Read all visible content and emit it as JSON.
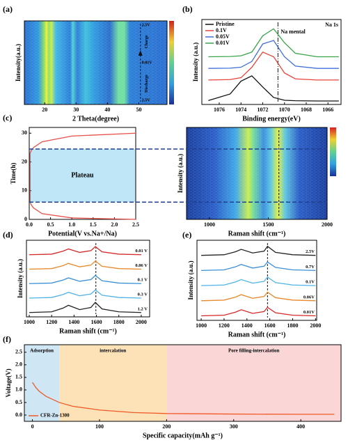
{
  "chart_data": [
    {
      "panel": "(a)",
      "type": "heatmap",
      "xlabel": "2 Theta(degree)",
      "ylabel": "Intensity(a.u.)",
      "xlim": [
        13.5,
        59
      ],
      "xticks": [
        20,
        30,
        40,
        50
      ],
      "ref_x": 50.5,
      "annotations": [
        "2.5V",
        "0.01V",
        "2.5V",
        "Charge",
        "Discharge"
      ]
    },
    {
      "panel": "(b)",
      "type": "line",
      "xlabel": "Binding energy(eV)",
      "ylabel": "Intensity (a.u.)",
      "x": [
        1077,
        1075,
        1074,
        1073,
        1072,
        1071,
        1070,
        1069,
        1067,
        1065
      ],
      "series": [
        {
          "name": "Pristine",
          "color": "#111111",
          "values": [
            0.02,
            0.3,
            0.85,
            1.08,
            0.6,
            0.15,
            0.03,
            0.01,
            0,
            0
          ]
        },
        {
          "name": "0.1V",
          "color": "#e8443a",
          "values": [
            0.9,
            0.92,
            1.0,
            1.45,
            2.1,
            1.9,
            1.2,
            0.95,
            0.9,
            0.9
          ]
        },
        {
          "name": "0.05V",
          "color": "#3f6fd8",
          "values": [
            1.4,
            1.41,
            1.45,
            1.7,
            2.45,
            2.6,
            1.9,
            1.5,
            1.4,
            1.4
          ]
        },
        {
          "name": "0.01V",
          "color": "#3aa54a",
          "values": [
            1.9,
            1.91,
            1.94,
            2.1,
            2.8,
            3.1,
            2.5,
            2.05,
            1.9,
            1.9
          ]
        }
      ],
      "xlim": [
        1077.6,
        1064.8
      ],
      "xticks": [
        1076,
        1074,
        1072,
        1070,
        1068,
        1066
      ],
      "ylim": [
        -0.15,
        3.5
      ],
      "ref_x": 1070.6,
      "annotations": [
        "Na mental",
        "Na 1s"
      ]
    },
    {
      "panel": "(c)",
      "type": "line",
      "xlabel": "Potential(V vs.Na+/Na)",
      "ylabel": "Time(h)",
      "x": [
        2.5,
        1.0,
        0.3,
        0.1,
        0.05,
        0.02,
        0.02,
        0.05,
        0.1,
        0.3,
        1.0,
        2.5
      ],
      "values": [
        0,
        0.5,
        2,
        4,
        5,
        6,
        23,
        24,
        25,
        27,
        29,
        30
      ],
      "color": "#e8504a",
      "band": [
        6,
        24.5
      ],
      "band_label": "Plateau",
      "xlim": [
        0,
        2.5
      ],
      "ylim": [
        0,
        32
      ],
      "xticks": [
        {
          "value": 0,
          "label": "0.0"
        },
        0.5,
        {
          "value": 1,
          "label": "1.0"
        },
        1.5,
        {
          "value": 2,
          "label": "2.0"
        },
        2.5
      ],
      "yticks": [
        0,
        10,
        20,
        30
      ]
    },
    {
      "type": "heatmap",
      "xlabel": "Raman shift (cm⁻¹)",
      "ylabel": "Intensity (a.u.)",
      "xlim": [
        805,
        2000
      ],
      "xticks": [
        1000,
        1500,
        2000
      ],
      "ref_x": 1590
    },
    {
      "panel": "(d)",
      "type": "line",
      "xlabel": "Raman shift (cm⁻¹)",
      "ylabel": "Intensity (a.u.)",
      "x": [
        1000,
        1200,
        1300,
        1350,
        1450,
        1550,
        1590,
        1650,
        1800,
        2000
      ],
      "series": [
        {
          "name": "0.01 V",
          "color": "#d62728",
          "values": [
            4,
            4.04,
            4.24,
            4.4,
            4.16,
            4.28,
            4.56,
            4.2,
            4.04,
            4
          ]
        },
        {
          "name": "0.06 V",
          "color": "#e8882a",
          "values": [
            3,
            3.04,
            3.24,
            3.4,
            3.16,
            3.28,
            3.56,
            3.2,
            3.04,
            3
          ]
        },
        {
          "name": "0.1 V",
          "color": "#3a8fd6",
          "values": [
            2,
            2.04,
            2.24,
            2.4,
            2.16,
            2.28,
            2.56,
            2.2,
            2.04,
            2
          ]
        },
        {
          "name": "0.3 V",
          "color": "#4fb3e8",
          "values": [
            1,
            1.04,
            1.24,
            1.4,
            1.16,
            1.28,
            1.56,
            1.2,
            1.04,
            1
          ]
        },
        {
          "name": "1.2 V",
          "color": "#222222",
          "values": [
            0,
            0.05,
            0.3,
            0.5,
            0.2,
            0.35,
            0.7,
            0.25,
            0.05,
            0
          ]
        }
      ],
      "xlim": [
        975,
        2075
      ],
      "xticks": [
        1000,
        1200,
        1400,
        1600,
        1800,
        2000
      ],
      "ylim": [
        -0.3,
        5
      ],
      "ref_x": 1595
    },
    {
      "panel": "(e)",
      "type": "line",
      "xlabel": "Raman shift (cm⁻¹)",
      "ylabel": "Intensity (a.u.)",
      "x": [
        1000,
        1200,
        1300,
        1350,
        1450,
        1550,
        1580,
        1650,
        1800,
        2000
      ],
      "series": [
        {
          "name": "2.5V",
          "color": "#222222",
          "values": [
            4,
            4.04,
            4.24,
            4.4,
            4.16,
            4.28,
            4.6,
            4.2,
            4.04,
            4
          ]
        },
        {
          "name": "0.7V",
          "color": "#3a8fd6",
          "values": [
            3,
            3.04,
            3.24,
            3.4,
            3.16,
            3.28,
            3.56,
            3.2,
            3.04,
            3
          ]
        },
        {
          "name": "0.1V",
          "color": "#4fb3e8",
          "values": [
            2,
            2.04,
            2.24,
            2.4,
            2.16,
            2.28,
            2.56,
            2.2,
            2.04,
            2
          ]
        },
        {
          "name": "0.06V",
          "color": "#e8882a",
          "values": [
            1,
            1.04,
            1.24,
            1.4,
            1.16,
            1.28,
            1.56,
            1.2,
            1.04,
            1
          ]
        },
        {
          "name": "0.01V",
          "color": "#d62728",
          "values": [
            0,
            0.04,
            0.24,
            0.4,
            0.16,
            0.28,
            0.56,
            0.2,
            0.04,
            0
          ]
        }
      ],
      "xlim": [
        963,
        2010
      ],
      "xticks": [
        1000,
        1200,
        1400,
        1600,
        1800,
        2000
      ],
      "ylim": [
        -0.3,
        5
      ],
      "ref_x": 1580
    },
    {
      "panel": "(f)",
      "type": "line",
      "xlabel": "Specific capacity(mAh g⁻¹)",
      "ylabel": "Voltage(V)",
      "x": [
        0,
        5,
        10,
        20,
        40,
        60,
        100,
        150,
        200,
        300,
        400,
        450
      ],
      "series": [
        {
          "name": "CFR-Zn-1300",
          "color": "#f05a28",
          "values": [
            1.3,
            1.1,
            0.95,
            0.75,
            0.5,
            0.35,
            0.2,
            0.1,
            0.06,
            0.04,
            0.03,
            0.03
          ]
        }
      ],
      "regions": [
        {
          "label": "Adsorption",
          "range": [
            -12,
            40
          ],
          "color": "#cfe6f5"
        },
        {
          "label": "intercalation",
          "range": [
            40,
            200
          ],
          "color": "#fde2b8"
        },
        {
          "label": "Pore filling-intercalation",
          "range": [
            200,
            460
          ],
          "color": "#fbd6d6"
        }
      ],
      "xlim": [
        -12,
        460
      ],
      "xticks": [
        0,
        100,
        200,
        300,
        400
      ],
      "ylim": [
        -0.25,
        2.8
      ],
      "yticks": [
        {
          "value": 0,
          "label": "0.0"
        },
        0.5,
        {
          "value": 1,
          "label": "1.0"
        },
        1.5,
        {
          "value": 2,
          "label": "2.0"
        },
        2.5
      ]
    }
  ]
}
